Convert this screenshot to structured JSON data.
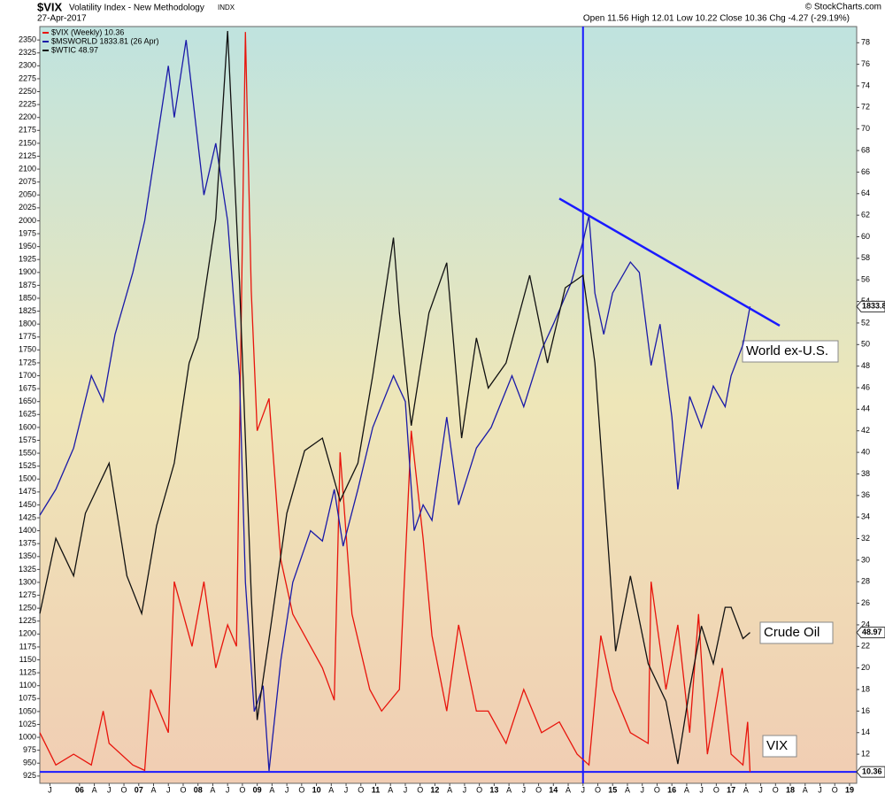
{
  "header": {
    "symbol": "$VIX",
    "name": "Volatility Index - New Methodology",
    "exchange": "INDX",
    "date": "27-Apr-2017",
    "source": "© StockCharts.com",
    "quote": "Open 11.56  High 12.01  Low 10.22  Close 10.36  Chg -4.27 (-29.19%)"
  },
  "chart_data": {
    "type": "line",
    "xlim": [
      2005.33,
      2019.12
    ],
    "xticks": [
      {
        "value": 2005.5,
        "label": "J"
      },
      {
        "value": 2006,
        "label": "06"
      },
      {
        "value": 2006.25,
        "label": "A"
      },
      {
        "value": 2006.5,
        "label": "J"
      },
      {
        "value": 2006.75,
        "label": "O"
      },
      {
        "value": 2007,
        "label": "07"
      },
      {
        "value": 2007.25,
        "label": "A"
      },
      {
        "value": 2007.5,
        "label": "J"
      },
      {
        "value": 2007.75,
        "label": "O"
      },
      {
        "value": 2008,
        "label": "08"
      },
      {
        "value": 2008.25,
        "label": "A"
      },
      {
        "value": 2008.5,
        "label": "J"
      },
      {
        "value": 2008.75,
        "label": "O"
      },
      {
        "value": 2009,
        "label": "09"
      },
      {
        "value": 2009.25,
        "label": "A"
      },
      {
        "value": 2009.5,
        "label": "J"
      },
      {
        "value": 2009.75,
        "label": "O"
      },
      {
        "value": 2010,
        "label": "10"
      },
      {
        "value": 2010.25,
        "label": "A"
      },
      {
        "value": 2010.5,
        "label": "J"
      },
      {
        "value": 2010.75,
        "label": "O"
      },
      {
        "value": 2011,
        "label": "11"
      },
      {
        "value": 2011.25,
        "label": "A"
      },
      {
        "value": 2011.5,
        "label": "J"
      },
      {
        "value": 2011.75,
        "label": "O"
      },
      {
        "value": 2012,
        "label": "12"
      },
      {
        "value": 2012.25,
        "label": "A"
      },
      {
        "value": 2012.5,
        "label": "J"
      },
      {
        "value": 2012.75,
        "label": "O"
      },
      {
        "value": 2013,
        "label": "13"
      },
      {
        "value": 2013.25,
        "label": "A"
      },
      {
        "value": 2013.5,
        "label": "J"
      },
      {
        "value": 2013.75,
        "label": "O"
      },
      {
        "value": 2014,
        "label": "14"
      },
      {
        "value": 2014.25,
        "label": "A"
      },
      {
        "value": 2014.5,
        "label": "J"
      },
      {
        "value": 2014.75,
        "label": "O"
      },
      {
        "value": 2015,
        "label": "15"
      },
      {
        "value": 2015.25,
        "label": "A"
      },
      {
        "value": 2015.5,
        "label": "J"
      },
      {
        "value": 2015.75,
        "label": "O"
      },
      {
        "value": 2016,
        "label": "16"
      },
      {
        "value": 2016.25,
        "label": "A"
      },
      {
        "value": 2016.5,
        "label": "J"
      },
      {
        "value": 2016.75,
        "label": "O"
      },
      {
        "value": 2017,
        "label": "17"
      },
      {
        "value": 2017.25,
        "label": "A"
      },
      {
        "value": 2017.5,
        "label": "J"
      },
      {
        "value": 2017.75,
        "label": "O"
      },
      {
        "value": 2018,
        "label": "18"
      },
      {
        "value": 2018.25,
        "label": "A"
      },
      {
        "value": 2018.5,
        "label": "J"
      },
      {
        "value": 2018.75,
        "label": "O"
      },
      {
        "value": 2019,
        "label": "19"
      }
    ],
    "ylim": [
      911,
      2376
    ],
    "yticks": [
      925,
      950,
      975,
      1000,
      1025,
      1050,
      1075,
      1100,
      1125,
      1150,
      1175,
      1200,
      1225,
      1250,
      1275,
      1300,
      1325,
      1350,
      1375,
      1400,
      1425,
      1450,
      1475,
      1500,
      1525,
      1550,
      1575,
      1600,
      1625,
      1650,
      1675,
      1700,
      1725,
      1750,
      1775,
      1800,
      1825,
      1850,
      1875,
      1900,
      1925,
      1950,
      1975,
      2000,
      2025,
      2050,
      2075,
      2100,
      2125,
      2150,
      2175,
      2200,
      2225,
      2250,
      2275,
      2300,
      2325,
      2350
    ],
    "y2lim": [
      9.3,
      79.5
    ],
    "y2ticks": [
      12,
      14,
      16,
      18,
      20,
      22,
      24,
      26,
      28,
      30,
      32,
      34,
      36,
      38,
      40,
      42,
      44,
      46,
      48,
      50,
      52,
      54,
      56,
      58,
      60,
      62,
      64,
      66,
      68,
      70,
      72,
      74,
      76,
      78
    ],
    "y3lim": [
      24.9,
      145.7
    ],
    "series": [
      {
        "name": "$VIX (Weekly) 10.36",
        "color": "#e8140c",
        "axis": "y2",
        "tag": "10.36",
        "x": [
          2005.33,
          2005.6,
          2005.9,
          2006.2,
          2006.4,
          2006.5,
          2006.9,
          2007.1,
          2007.2,
          2007.5,
          2007.6,
          2007.9,
          2008.1,
          2008.3,
          2008.5,
          2008.65,
          2008.8,
          2008.9,
          2009.0,
          2009.2,
          2009.4,
          2009.6,
          2009.9,
          2010.1,
          2010.3,
          2010.4,
          2010.6,
          2010.9,
          2011.1,
          2011.4,
          2011.6,
          2011.8,
          2011.95,
          2012.2,
          2012.4,
          2012.7,
          2012.9,
          2013.2,
          2013.5,
          2013.8,
          2014.1,
          2014.4,
          2014.6,
          2014.8,
          2015.0,
          2015.3,
          2015.6,
          2015.65,
          2015.9,
          2016.1,
          2016.3,
          2016.45,
          2016.6,
          2016.85,
          2017.0,
          2017.2,
          2017.28,
          2017.32
        ],
        "values": [
          14,
          11,
          12,
          11,
          16,
          13,
          11,
          10.5,
          18,
          14,
          28,
          22,
          28,
          20,
          24,
          22,
          79,
          55,
          42,
          45,
          30,
          25,
          22,
          20,
          17,
          40,
          25,
          18,
          16,
          18,
          42,
          32,
          23,
          16,
          24,
          16,
          16,
          13,
          18,
          14,
          15,
          12,
          11,
          23,
          18,
          14,
          13,
          28,
          18,
          24,
          14,
          25,
          12,
          20,
          12,
          11,
          15,
          10.36
        ]
      },
      {
        "name": "$MSWORLD 1833.81 (26 Apr)",
        "color": "#1a1aa8",
        "axis": "y",
        "tag": "1833.8",
        "x": [
          2005.33,
          2005.6,
          2005.9,
          2006.2,
          2006.4,
          2006.6,
          2006.9,
          2007.1,
          2007.3,
          2007.5,
          2007.6,
          2007.8,
          2007.9,
          2008.1,
          2008.3,
          2008.5,
          2008.7,
          2008.8,
          2008.95,
          2009.1,
          2009.2,
          2009.4,
          2009.6,
          2009.9,
          2010.1,
          2010.3,
          2010.45,
          2010.7,
          2010.95,
          2011.3,
          2011.5,
          2011.65,
          2011.8,
          2011.95,
          2012.2,
          2012.4,
          2012.7,
          2012.95,
          2013.3,
          2013.5,
          2013.8,
          2014.0,
          2014.3,
          2014.5,
          2014.6,
          2014.7,
          2014.85,
          2015.0,
          2015.3,
          2015.45,
          2015.65,
          2015.8,
          2016.0,
          2016.1,
          2016.3,
          2016.5,
          2016.7,
          2016.9,
          2017.0,
          2017.2,
          2017.32
        ],
        "values": [
          1430,
          1480,
          1560,
          1700,
          1650,
          1780,
          1900,
          2000,
          2150,
          2300,
          2200,
          2350,
          2250,
          2050,
          2150,
          2000,
          1700,
          1300,
          1050,
          1100,
          935,
          1150,
          1300,
          1400,
          1380,
          1480,
          1370,
          1480,
          1600,
          1700,
          1650,
          1400,
          1450,
          1420,
          1620,
          1450,
          1560,
          1600,
          1700,
          1640,
          1750,
          1800,
          1880,
          1960,
          2010,
          1860,
          1780,
          1860,
          1920,
          1900,
          1720,
          1800,
          1620,
          1480,
          1660,
          1600,
          1680,
          1640,
          1700,
          1760,
          1834
        ]
      },
      {
        "name": "$WTIC 48.97",
        "color": "#111111",
        "axis": "y3",
        "tag": "48.97",
        "x": [
          2005.33,
          2005.6,
          2005.9,
          2006.1,
          2006.5,
          2006.8,
          2007.05,
          2007.3,
          2007.6,
          2007.85,
          2008.0,
          2008.3,
          2008.5,
          2008.7,
          2008.9,
          2009.0,
          2009.2,
          2009.5,
          2009.8,
          2010.1,
          2010.4,
          2010.7,
          2010.95,
          2011.3,
          2011.4,
          2011.6,
          2011.9,
          2012.2,
          2012.45,
          2012.7,
          2012.9,
          2013.2,
          2013.6,
          2013.9,
          2014.2,
          2014.5,
          2014.7,
          2014.9,
          2015.05,
          2015.3,
          2015.6,
          2015.9,
          2016.1,
          2016.3,
          2016.5,
          2016.7,
          2016.9,
          2017.0,
          2017.2,
          2017.32
        ],
        "values": [
          52,
          64,
          58,
          68,
          76,
          58,
          52,
          66,
          76,
          92,
          96,
          115,
          145,
          105,
          55,
          35,
          48,
          68,
          78,
          80,
          70,
          76,
          90,
          112,
          100,
          82,
          100,
          108,
          80,
          96,
          88,
          92,
          106,
          92,
          104,
          106,
          92,
          66,
          46,
          58,
          44,
          38,
          28,
          40,
          50,
          44,
          53,
          53,
          48,
          48.97
        ]
      }
    ],
    "trendline": {
      "x": [
        2014.1,
        2017.82
      ],
      "values": [
        2043,
        1797
      ],
      "color": "#1a1aff"
    },
    "vertical_line": {
      "x": 2014.5,
      "color": "#1a1aff"
    },
    "horizontal_line": {
      "y2": 10.36,
      "color": "#1a1aff"
    },
    "annotations": [
      {
        "text": "World ex-U.S.",
        "color": "#1a1aff"
      },
      {
        "text": "Crude Oil",
        "color": "#000000"
      },
      {
        "text": "VIX",
        "color": "#e8140c"
      }
    ]
  }
}
